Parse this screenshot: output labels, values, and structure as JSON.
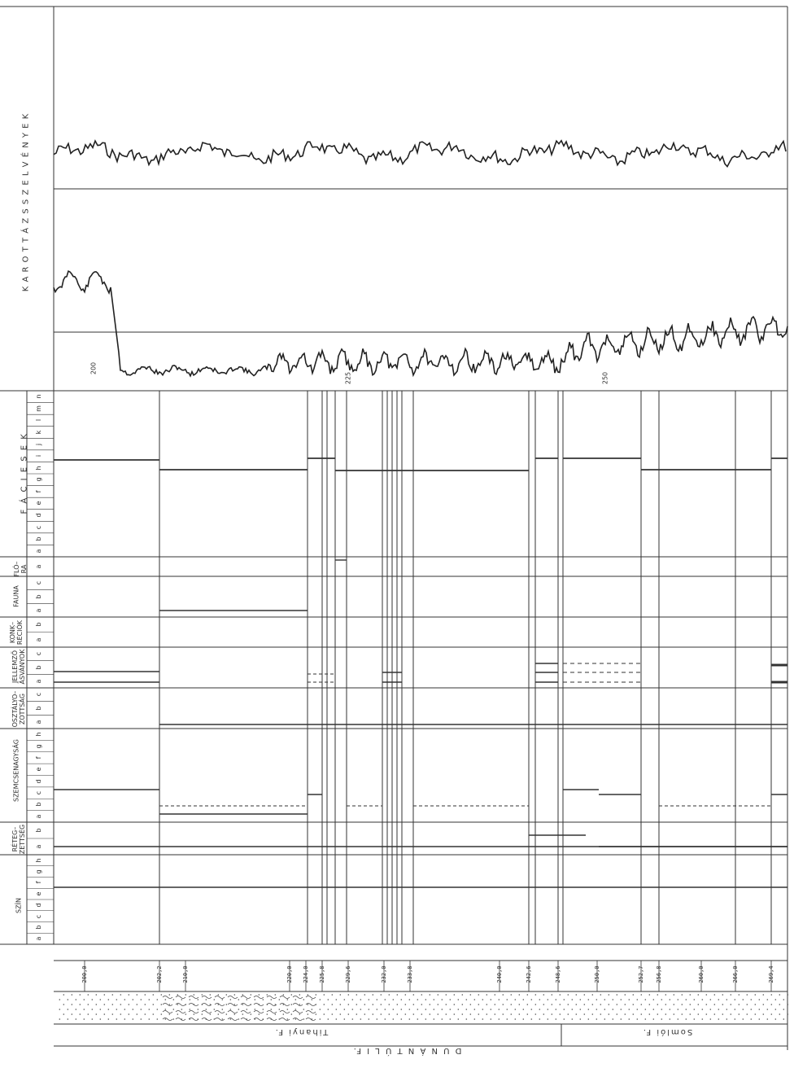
{
  "headers": {
    "log_title": "K A R O T T Á Z S   S Z E L V É N Y E K",
    "facies": "F Á C I E S E K",
    "flora": "FLÓ–\nRA",
    "fauna": "FAUNA",
    "konkreciok": "KONK–\nRÉCIÓK",
    "jellemzo": "JELLEMZŐ\nÁSVÁNYOK",
    "osztalyozottsag": "OSZTÁLYO–\nZOTTSÁG",
    "szemcsenagysag": "SZEMCSENAGYSÁG",
    "retegzettseg": "RÉTEG–\nZETTSÉG",
    "szin": "SZÍN"
  },
  "letters": {
    "facies": [
      "a",
      "b",
      "c",
      "d",
      "e",
      "f",
      "g",
      "h",
      "i",
      "j",
      "k",
      "l",
      "m",
      "n"
    ],
    "flora": [
      "a"
    ],
    "fauna": [
      "a",
      "b",
      "c"
    ],
    "konkreciok": [
      "a",
      "b"
    ],
    "jellemzo": [
      "a",
      "b",
      "c"
    ],
    "osztalyozottsag": [
      "a",
      "b",
      "c"
    ],
    "szemcsenagysag": [
      "a",
      "b",
      "c",
      "d",
      "e",
      "f",
      "g",
      "h"
    ],
    "retegzettseg": [
      "a",
      "b"
    ],
    "szin": [
      "a",
      "b",
      "c",
      "d",
      "e",
      "f",
      "g",
      "h"
    ]
  },
  "depth_marks": [
    "200",
    "225",
    "250"
  ],
  "depth_ticks": [
    "200,0",
    "202,2",
    "210,0",
    "220,0",
    "224,0",
    "225,8",
    "229,6",
    "232,0",
    "233,8",
    "240,0",
    "242,6",
    "248,6",
    "250,0",
    "252,7",
    "256,8",
    "260,0",
    "266,0",
    "269,4"
  ],
  "formations": {
    "left": "Tihanyi F.",
    "right": "Somlói F."
  },
  "group": "D U N Á N T Ú L I   F."
}
